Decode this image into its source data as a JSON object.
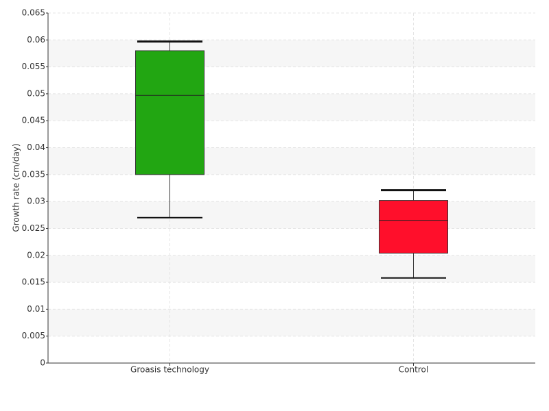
{
  "chart_data": {
    "type": "box",
    "y_label": "Growth rate (cm/day)",
    "categories": [
      "Groasis technology",
      "Control"
    ],
    "boxes": [
      {
        "min": 0.027,
        "q1": 0.035,
        "median": 0.0497,
        "q3": 0.058,
        "max": 0.0597,
        "color": "#22a612"
      },
      {
        "min": 0.0158,
        "q1": 0.0204,
        "median": 0.0265,
        "q3": 0.0302,
        "max": 0.0321,
        "color": "#ff0f2b"
      }
    ],
    "ylim": [
      0,
      0.065
    ],
    "yticks": [
      0,
      0.005,
      0.01,
      0.015,
      0.02,
      0.025,
      0.03,
      0.035,
      0.04,
      0.045,
      0.05,
      0.055,
      0.06,
      0.065
    ],
    "grid": true
  }
}
